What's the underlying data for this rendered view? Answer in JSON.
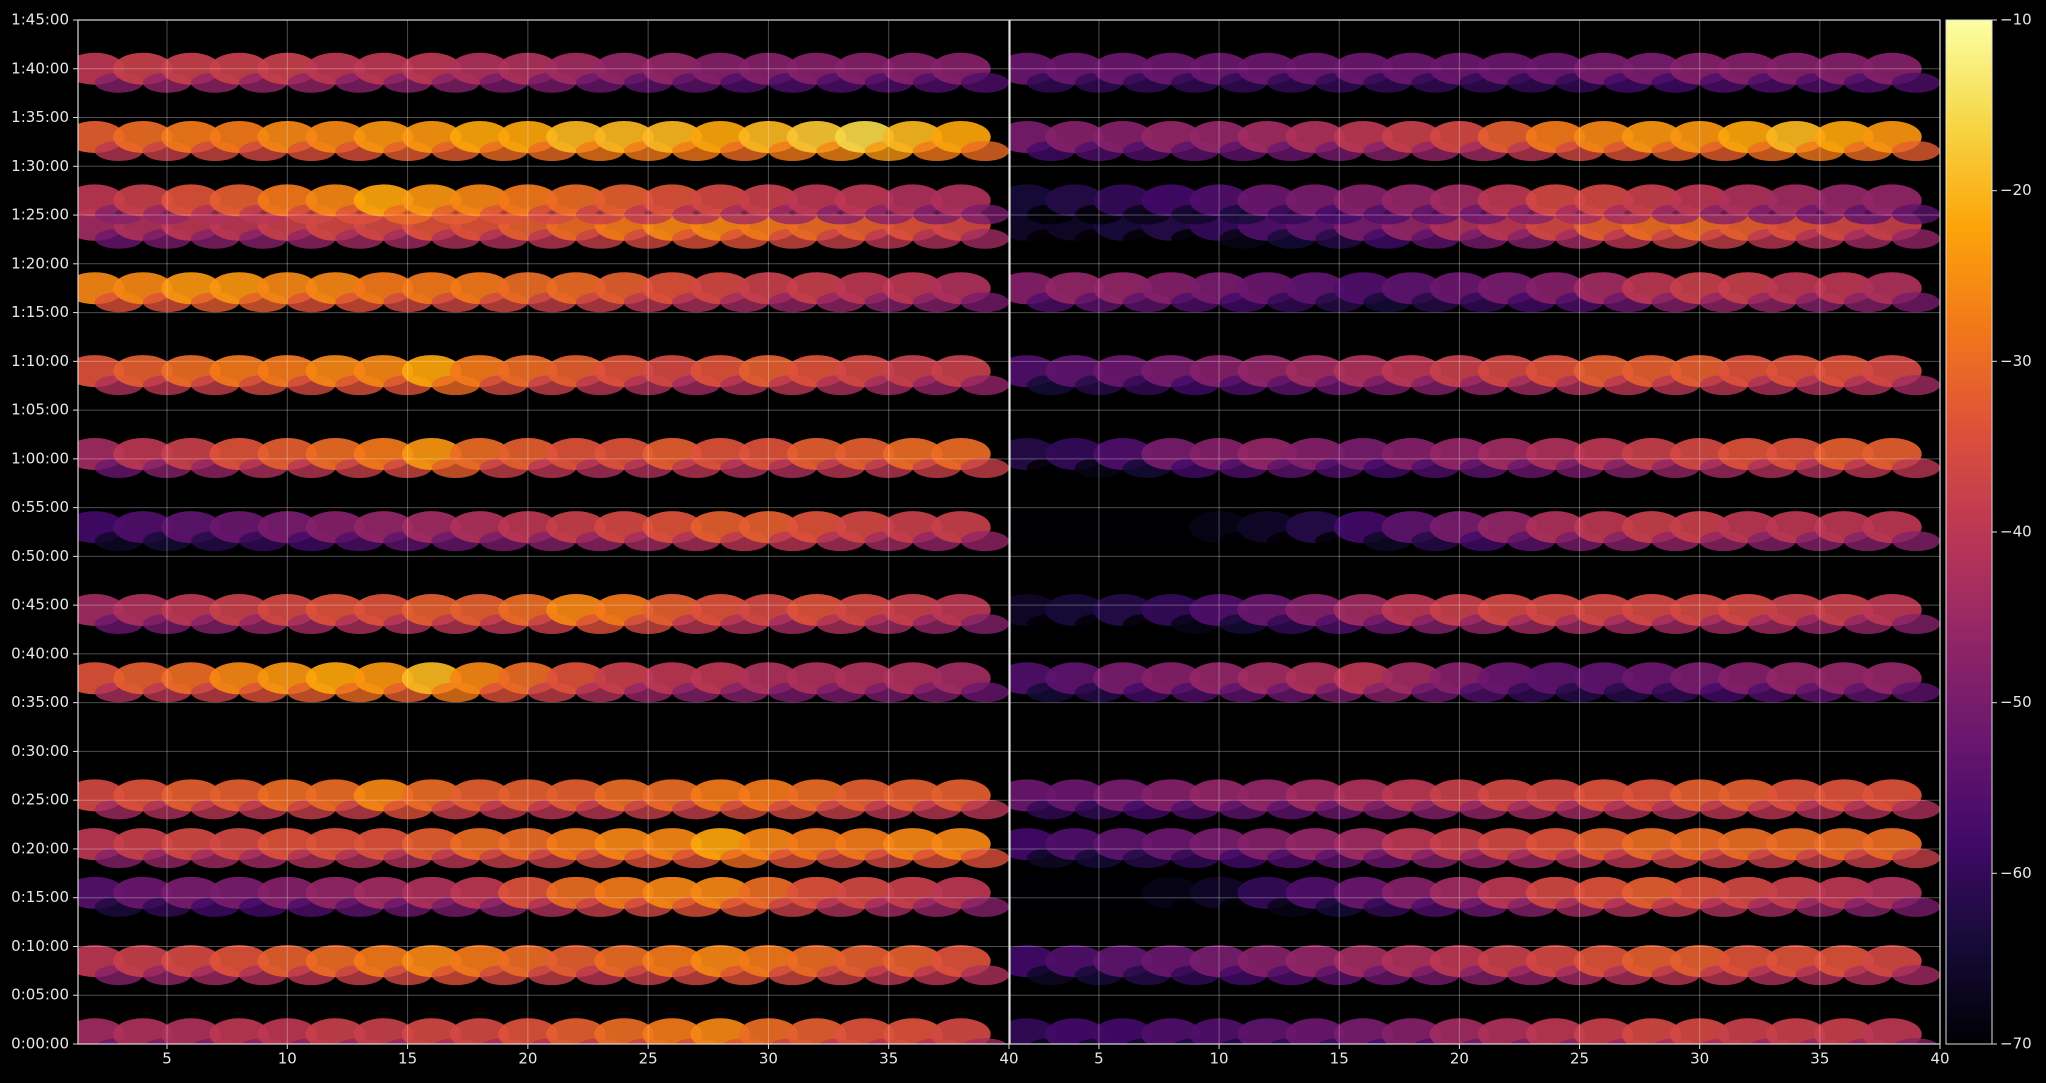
{
  "chart_data": {
    "type": "ellipse-heatmap",
    "colormap": "inferno",
    "grid": true,
    "ylim": [
      0,
      6300
    ],
    "yticks": [
      {
        "value": 0,
        "label": "0:00:00"
      },
      {
        "value": 300,
        "label": "0:05:00"
      },
      {
        "value": 600,
        "label": "0:10:00"
      },
      {
        "value": 900,
        "label": "0:15:00"
      },
      {
        "value": 1200,
        "label": "0:20:00"
      },
      {
        "value": 1500,
        "label": "0:25:00"
      },
      {
        "value": 1800,
        "label": "0:30:00"
      },
      {
        "value": 2100,
        "label": "0:35:00"
      },
      {
        "value": 2400,
        "label": "0:40:00"
      },
      {
        "value": 2700,
        "label": "0:45:00"
      },
      {
        "value": 3000,
        "label": "0:50:00"
      },
      {
        "value": 3300,
        "label": "0:55:00"
      },
      {
        "value": 3600,
        "label": "1:00:00"
      },
      {
        "value": 3900,
        "label": "1:05:00"
      },
      {
        "value": 4200,
        "label": "1:10:00"
      },
      {
        "value": 4500,
        "label": "1:15:00"
      },
      {
        "value": 4800,
        "label": "1:20:00"
      },
      {
        "value": 5100,
        "label": "1:25:00"
      },
      {
        "value": 5400,
        "label": "1:30:00"
      },
      {
        "value": 5700,
        "label": "1:35:00"
      },
      {
        "value": 6000,
        "label": "1:40:00"
      },
      {
        "value": 6300,
        "label": "1:45:00"
      }
    ],
    "clim": [
      -70,
      -10
    ],
    "cticks": [
      {
        "value": -70,
        "label": "−70"
      },
      {
        "value": -60,
        "label": "−60"
      },
      {
        "value": -50,
        "label": "−50"
      },
      {
        "value": -40,
        "label": "−40"
      },
      {
        "value": -30,
        "label": "−30"
      },
      {
        "value": -20,
        "label": "−20"
      },
      {
        "value": -10,
        "label": "−10"
      }
    ],
    "panels": [
      {
        "xlim": [
          1.3,
          40
        ],
        "xticks": [
          5,
          10,
          15,
          20,
          25,
          30,
          35,
          40
        ],
        "x": [
          2,
          4,
          6,
          8,
          10,
          12,
          14,
          16,
          18,
          20,
          22,
          24,
          26,
          28,
          30,
          32,
          34,
          36,
          38
        ],
        "rows": [
          {
            "time": 60,
            "values": [
              -44,
              -42,
              -42,
              -40,
              -40,
              -38,
              -38,
              -36,
              -36,
              -34,
              -32,
              -30,
              -28,
              -26,
              -30,
              -32,
              -34,
              -34,
              -36
            ]
          },
          {
            "time": 510,
            "values": [
              -40,
              -38,
              -36,
              -34,
              -32,
              -30,
              -28,
              -26,
              -28,
              -30,
              -32,
              -30,
              -28,
              -26,
              -28,
              -30,
              -32,
              -32,
              -34
            ]
          },
          {
            "time": 930,
            "values": [
              -55,
              -52,
              -50,
              -50,
              -48,
              -46,
              -44,
              -42,
              -40,
              -34,
              -30,
              -28,
              -26,
              -26,
              -30,
              -34,
              -36,
              -38,
              -40
            ]
          },
          {
            "time": 1230,
            "values": [
              -40,
              -38,
              -36,
              -36,
              -34,
              -34,
              -34,
              -32,
              -30,
              -30,
              -28,
              -26,
              -26,
              -22,
              -26,
              -28,
              -28,
              -26,
              -26
            ]
          },
          {
            "time": 1530,
            "values": [
              -36,
              -34,
              -32,
              -32,
              -30,
              -30,
              -26,
              -30,
              -32,
              -32,
              -32,
              -30,
              -30,
              -28,
              -28,
              -30,
              -32,
              -32,
              -32
            ]
          },
          {
            "time": 2250,
            "values": [
              -34,
              -32,
              -30,
              -26,
              -24,
              -22,
              -24,
              -20,
              -26,
              -30,
              -34,
              -38,
              -40,
              -40,
              -42,
              -42,
              -42,
              -42,
              -44
            ]
          },
          {
            "time": 2670,
            "values": [
              -44,
              -42,
              -40,
              -38,
              -36,
              -34,
              -34,
              -32,
              -32,
              -30,
              -26,
              -28,
              -32,
              -34,
              -36,
              -34,
              -36,
              -38,
              -40
            ]
          },
          {
            "time": 3180,
            "values": [
              -58,
              -56,
              -54,
              -52,
              -50,
              -48,
              -46,
              -44,
              -42,
              -40,
              -38,
              -36,
              -34,
              -32,
              -32,
              -34,
              -36,
              -38,
              -38
            ]
          },
          {
            "time": 3630,
            "values": [
              -44,
              -40,
              -38,
              -34,
              -32,
              -30,
              -28,
              -24,
              -30,
              -32,
              -34,
              -34,
              -32,
              -34,
              -34,
              -32,
              -32,
              -30,
              -30
            ]
          },
          {
            "time": 4140,
            "values": [
              -34,
              -32,
              -30,
              -28,
              -28,
              -26,
              -26,
              -22,
              -28,
              -30,
              -32,
              -34,
              -36,
              -34,
              -32,
              -34,
              -36,
              -38,
              -38
            ]
          },
          {
            "time": 4650,
            "values": [
              -26,
              -26,
              -24,
              -24,
              -26,
              -26,
              -28,
              -28,
              -28,
              -30,
              -30,
              -32,
              -34,
              -36,
              -38,
              -38,
              -40,
              -40,
              -42
            ]
          },
          {
            "time": 5040,
            "values": [
              -44,
              -42,
              -40,
              -40,
              -38,
              -36,
              -36,
              -34,
              -34,
              -32,
              -30,
              -28,
              -26,
              -26,
              -28,
              -30,
              -32,
              -34,
              -36
            ]
          },
          {
            "time": 5190,
            "values": [
              -40,
              -38,
              -34,
              -32,
              -28,
              -26,
              -22,
              -24,
              -26,
              -28,
              -30,
              -32,
              -34,
              -36,
              -38,
              -40,
              -40,
              -42,
              -42
            ]
          },
          {
            "time": 5580,
            "values": [
              -32,
              -30,
              -28,
              -28,
              -26,
              -26,
              -24,
              -24,
              -22,
              -22,
              -20,
              -20,
              -20,
              -22,
              -20,
              -18,
              -16,
              -20,
              -22
            ]
          },
          {
            "time": 6000,
            "values": [
              -40,
              -38,
              -38,
              -38,
              -38,
              -40,
              -40,
              -40,
              -42,
              -42,
              -44,
              -46,
              -46,
              -48,
              -48,
              -48,
              -48,
              -48,
              -48
            ]
          }
        ]
      },
      {
        "xlim": [
          1.3,
          40
        ],
        "xticks": [
          5,
          10,
          15,
          20,
          25,
          30,
          35,
          40
        ],
        "x": [
          2,
          4,
          6,
          8,
          10,
          12,
          14,
          16,
          18,
          20,
          22,
          24,
          26,
          28,
          30,
          32,
          34,
          36,
          38
        ],
        "rows": [
          {
            "time": 60,
            "values": [
              -60,
              -58,
              -58,
              -56,
              -56,
              -54,
              -52,
              -50,
              -48,
              -44,
              -42,
              -40,
              -38,
              -36,
              -36,
              -38,
              -38,
              -38,
              -40
            ]
          },
          {
            "time": 510,
            "values": [
              -58,
              -56,
              -54,
              -52,
              -50,
              -48,
              -46,
              -44,
              -42,
              -40,
              -38,
              -36,
              -34,
              -32,
              -32,
              -34,
              -34,
              -34,
              -36
            ]
          },
          {
            "time": 930,
            "values": [
              -70,
              -70,
              -70,
              -68,
              -66,
              -60,
              -56,
              -52,
              -48,
              -44,
              -40,
              -36,
              -34,
              -32,
              -34,
              -36,
              -38,
              -40,
              -42
            ]
          },
          {
            "time": 1230,
            "values": [
              -58,
              -56,
              -54,
              -52,
              -50,
              -48,
              -46,
              -44,
              -40,
              -38,
              -36,
              -34,
              -32,
              -30,
              -30,
              -30,
              -30,
              -30,
              -30
            ]
          },
          {
            "time": 1530,
            "values": [
              -52,
              -52,
              -50,
              -48,
              -46,
              -46,
              -44,
              -42,
              -40,
              -38,
              -36,
              -36,
              -34,
              -34,
              -32,
              -32,
              -34,
              -34,
              -34
            ]
          },
          {
            "time": 2250,
            "values": [
              -56,
              -54,
              -50,
              -48,
              -46,
              -44,
              -42,
              -40,
              -44,
              -48,
              -52,
              -54,
              -54,
              -52,
              -50,
              -48,
              -46,
              -46,
              -46
            ]
          },
          {
            "time": 2670,
            "values": [
              -66,
              -64,
              -62,
              -60,
              -56,
              -52,
              -48,
              -44,
              -40,
              -38,
              -36,
              -36,
              -36,
              -36,
              -36,
              -36,
              -38,
              -38,
              -40
            ]
          },
          {
            "time": 3180,
            "values": [
              -70,
              -70,
              -70,
              -70,
              -68,
              -66,
              -62,
              -58,
              -54,
              -50,
              -46,
              -42,
              -40,
              -38,
              -38,
              -40,
              -40,
              -40,
              -40
            ]
          },
          {
            "time": 3630,
            "values": [
              -62,
              -60,
              -56,
              -50,
              -48,
              -46,
              -48,
              -50,
              -48,
              -46,
              -44,
              -42,
              -40,
              -38,
              -36,
              -34,
              -34,
              -32,
              -32
            ]
          },
          {
            "time": 4140,
            "values": [
              -56,
              -54,
              -52,
              -50,
              -48,
              -46,
              -44,
              -42,
              -40,
              -38,
              -36,
              -34,
              -32,
              -32,
              -32,
              -34,
              -34,
              -34,
              -36
            ]
          },
          {
            "time": 4650,
            "values": [
              -48,
              -46,
              -46,
              -48,
              -50,
              -52,
              -54,
              -56,
              -54,
              -52,
              -50,
              -48,
              -44,
              -40,
              -38,
              -38,
              -40,
              -40,
              -42
            ]
          },
          {
            "time": 5040,
            "values": [
              -66,
              -66,
              -64,
              -62,
              -60,
              -56,
              -54,
              -50,
              -46,
              -42,
              -40,
              -36,
              -32,
              -30,
              -30,
              -32,
              -34,
              -36,
              -38
            ]
          },
          {
            "time": 5190,
            "values": [
              -64,
              -62,
              -60,
              -58,
              -56,
              -52,
              -50,
              -48,
              -46,
              -44,
              -40,
              -36,
              -36,
              -38,
              -40,
              -42,
              -44,
              -46,
              -46
            ]
          },
          {
            "time": 5580,
            "values": [
              -50,
              -48,
              -48,
              -46,
              -46,
              -44,
              -42,
              -40,
              -38,
              -36,
              -32,
              -28,
              -26,
              -24,
              -24,
              -22,
              -20,
              -22,
              -24
            ]
          },
          {
            "time": 6000,
            "values": [
              -52,
              -52,
              -52,
              -52,
              -52,
              -52,
              -52,
              -52,
              -52,
              -52,
              -52,
              -52,
              -50,
              -50,
              -48,
              -48,
              -48,
              -48,
              -48
            ]
          }
        ]
      }
    ]
  }
}
